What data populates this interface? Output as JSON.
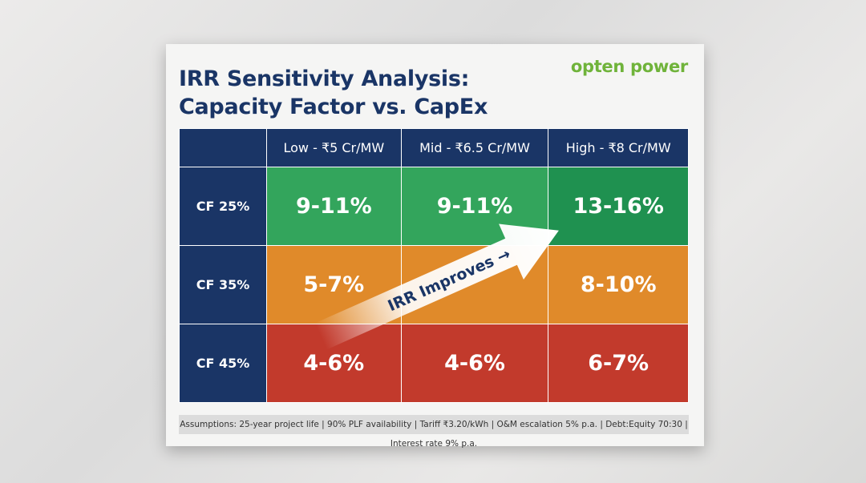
{
  "title_line1": "IRR Sensitivity Analysis:",
  "title_line2": "Capacity Factor vs. CapEx",
  "logo": "opten power",
  "columns": [
    "",
    "Low - ₹5 Cr/MW",
    "Mid - ₹6.5 Cr/MW",
    "High - ₹8 Cr/MW"
  ],
  "rows": [
    {
      "label": "CF 25%",
      "values": [
        "9-11%",
        "9-11%",
        "13-16%"
      ]
    },
    {
      "label": "CF 35%",
      "values": [
        "5-7%",
        "",
        "8-10%"
      ]
    },
    {
      "label": "CF 45%",
      "values": [
        "4-6%",
        "4-6%",
        "6-7%"
      ]
    }
  ],
  "arrow_label": "IRR Improves →",
  "footer": "Assumptions: 25-year project life | 90% PLF availability | Tariff ₹3.20/kWh | O&M escalation 5% p.a. | Debt:Equity 70:30 | Interest rate 9% p.a.",
  "colors": {
    "navy": "#1a3566",
    "green": "#33a55c",
    "orange": "#e08a2a",
    "red": "#c23a2c",
    "logo": "#6fb33a"
  }
}
